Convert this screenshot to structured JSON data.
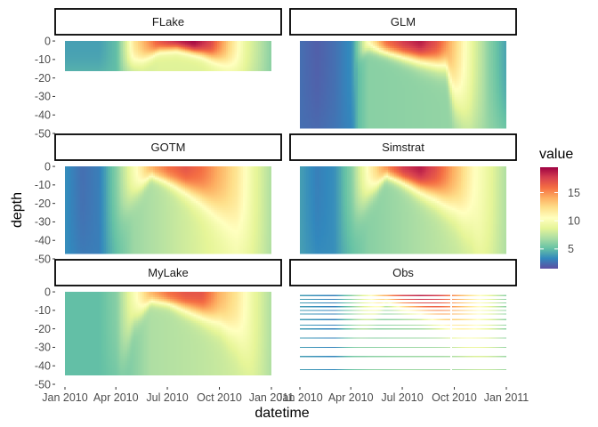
{
  "chart_data": {
    "type": "heatmap",
    "title": "",
    "xlabel": "datetime",
    "ylabel": "depth",
    "x_ticks": [
      "Jan 2010",
      "Apr 2010",
      "Jul 2010",
      "Oct 2010",
      "Jan 2011"
    ],
    "x_tick_dates": [
      "2010-01-01",
      "2010-04-01",
      "2010-07-01",
      "2010-10-01",
      "2011-01-01"
    ],
    "y_ticks": [
      0,
      -10,
      -20,
      -30,
      -40,
      -50
    ],
    "ylim": [
      -50,
      1
    ],
    "facet_layout": "3 rows x 2 columns",
    "legend": {
      "title": "value",
      "ticks": [
        5,
        10,
        15
      ],
      "range": [
        1.5,
        19.5
      ],
      "palette": "Spectral (reversed)",
      "colors": [
        "#5e4fa2",
        "#3288bd",
        "#66c2a5",
        "#abdda4",
        "#e6f598",
        "#ffffbf",
        "#fee08b",
        "#fdae61",
        "#f46d43",
        "#d53e4f",
        "#9e0142"
      ]
    },
    "facets": [
      {
        "name": "FLake",
        "max_depth": -16,
        "end_date": "2010-12-31",
        "style": "heatmap",
        "thermocline": [
          [
            0,
            15
          ],
          [
            3,
            15
          ],
          [
            4.5,
            10
          ],
          [
            5.5,
            5
          ],
          [
            6.5,
            4
          ],
          [
            8,
            7
          ],
          [
            9.5,
            12
          ],
          [
            10.5,
            16
          ],
          [
            11.5,
            16
          ]
        ],
        "surface_temp": [
          [
            0,
            4
          ],
          [
            2,
            4
          ],
          [
            3,
            5
          ],
          [
            3.5,
            8
          ],
          [
            4,
            12
          ],
          [
            5.5,
            17
          ],
          [
            6.5,
            19
          ],
          [
            7.5,
            19.5
          ],
          [
            8.5,
            17.5
          ],
          [
            9.5,
            13
          ],
          [
            10.5,
            9
          ],
          [
            12,
            6
          ]
        ],
        "deep_temp": [
          [
            0,
            5
          ],
          [
            3,
            5
          ],
          [
            3.5,
            6.5
          ],
          [
            4.5,
            8
          ],
          [
            5.5,
            8.5
          ],
          [
            8,
            8.5
          ],
          [
            9.5,
            9
          ],
          [
            10.5,
            8
          ],
          [
            12,
            6
          ]
        ]
      },
      {
        "name": "GLM",
        "max_depth": -47,
        "end_date": "2010-12-31",
        "style": "heatmap",
        "thermocline": [
          [
            0,
            47
          ],
          [
            1,
            47
          ],
          [
            2,
            47
          ],
          [
            3,
            47
          ],
          [
            3.3,
            10
          ],
          [
            4,
            4
          ],
          [
            5,
            6
          ],
          [
            6,
            8
          ],
          [
            7,
            10
          ],
          [
            8,
            12
          ],
          [
            8.5,
            13
          ],
          [
            9,
            30
          ],
          [
            10,
            47
          ],
          [
            12,
            47
          ]
        ],
        "surface_temp": [
          [
            0,
            2.5
          ],
          [
            1,
            2
          ],
          [
            2,
            2.5
          ],
          [
            3,
            3.5
          ],
          [
            3.4,
            6
          ],
          [
            4,
            11
          ],
          [
            5,
            16
          ],
          [
            6,
            18
          ],
          [
            7,
            19
          ],
          [
            8,
            17
          ],
          [
            9,
            13
          ],
          [
            10,
            9
          ],
          [
            11,
            6
          ],
          [
            12,
            4
          ]
        ],
        "deep_temp": [
          [
            0,
            2.5
          ],
          [
            3,
            3
          ],
          [
            3.4,
            5
          ],
          [
            4,
            6
          ],
          [
            12,
            6.5
          ]
        ]
      },
      {
        "name": "GOTM",
        "max_depth": -47,
        "end_date": "2010-12-31",
        "style": "heatmap",
        "thermocline": [
          [
            0,
            47
          ],
          [
            2,
            47
          ],
          [
            3,
            30
          ],
          [
            4,
            15
          ],
          [
            5,
            5
          ],
          [
            6,
            8
          ],
          [
            7,
            12
          ],
          [
            8,
            17
          ],
          [
            9,
            24
          ],
          [
            10,
            32
          ],
          [
            11,
            42
          ],
          [
            11.5,
            47
          ],
          [
            12,
            47
          ]
        ],
        "surface_temp": [
          [
            0,
            3.5
          ],
          [
            1,
            2.5
          ],
          [
            2,
            3
          ],
          [
            3,
            6
          ],
          [
            4,
            10
          ],
          [
            5,
            14
          ],
          [
            6,
            16
          ],
          [
            7,
            17
          ],
          [
            8,
            16
          ],
          [
            9,
            14
          ],
          [
            10,
            12
          ],
          [
            11,
            9
          ],
          [
            12,
            7
          ]
        ],
        "deep_temp": [
          [
            0,
            3.5
          ],
          [
            2,
            3
          ],
          [
            3,
            5
          ],
          [
            4,
            6.5
          ],
          [
            6,
            7.5
          ],
          [
            8,
            8.5
          ],
          [
            10,
            9.5
          ],
          [
            12,
            7
          ]
        ]
      },
      {
        "name": "Simstrat",
        "max_depth": -47,
        "end_date": "2010-12-31",
        "style": "heatmap",
        "thermocline": [
          [
            0,
            47
          ],
          [
            2,
            47
          ],
          [
            3,
            30
          ],
          [
            4,
            15
          ],
          [
            5,
            5
          ],
          [
            6,
            8
          ],
          [
            7,
            12
          ],
          [
            8,
            16
          ],
          [
            9,
            22
          ],
          [
            10,
            32
          ],
          [
            10.5,
            45
          ],
          [
            11,
            47
          ],
          [
            12,
            47
          ]
        ],
        "surface_temp": [
          [
            0,
            4
          ],
          [
            1,
            3
          ],
          [
            2,
            3.5
          ],
          [
            3,
            6
          ],
          [
            4,
            11
          ],
          [
            5,
            15
          ],
          [
            6,
            18
          ],
          [
            7,
            19
          ],
          [
            8,
            17
          ],
          [
            9,
            14
          ],
          [
            10,
            11
          ],
          [
            11,
            9
          ],
          [
            12,
            7
          ]
        ],
        "deep_temp": [
          [
            0,
            4
          ],
          [
            2,
            3.5
          ],
          [
            3,
            5
          ],
          [
            4,
            6
          ],
          [
            7,
            7
          ],
          [
            10,
            8
          ],
          [
            11,
            8
          ],
          [
            12,
            7
          ]
        ]
      },
      {
        "name": "MyLake",
        "max_depth": -45,
        "end_date": "2010-12-31",
        "style": "heatmap",
        "thermocline": [
          [
            0,
            45
          ],
          [
            3,
            45
          ],
          [
            4,
            15
          ],
          [
            5,
            5
          ],
          [
            6,
            6
          ],
          [
            7,
            9
          ],
          [
            8,
            12
          ],
          [
            9,
            16
          ],
          [
            10,
            24
          ],
          [
            11,
            40
          ],
          [
            11.5,
            45
          ],
          [
            12,
            45
          ]
        ],
        "surface_temp": [
          [
            0,
            5
          ],
          [
            1,
            5
          ],
          [
            2,
            5
          ],
          [
            3,
            6
          ],
          [
            4,
            10
          ],
          [
            5,
            14
          ],
          [
            6,
            16
          ],
          [
            7,
            17
          ],
          [
            8,
            17
          ],
          [
            9,
            14
          ],
          [
            10,
            12
          ],
          [
            11,
            9
          ],
          [
            12,
            7
          ]
        ],
        "deep_temp": [
          [
            0,
            5
          ],
          [
            3,
            5
          ],
          [
            4,
            6
          ],
          [
            5,
            7
          ],
          [
            8,
            7.5
          ],
          [
            10,
            8
          ],
          [
            11,
            8
          ],
          [
            12,
            7
          ]
        ]
      },
      {
        "name": "Obs",
        "max_depth": -42,
        "end_date": "2010-12-31",
        "style": "lines",
        "gap_month": 8.75,
        "obs_depths": [
          -2,
          -4,
          -6,
          -8,
          -10,
          -12,
          -15,
          -18,
          -20,
          -25,
          -30,
          -35,
          -42
        ],
        "thermocline": [
          [
            0,
            40
          ],
          [
            2,
            40
          ],
          [
            3,
            30
          ],
          [
            4,
            15
          ],
          [
            5,
            5
          ],
          [
            6,
            8
          ],
          [
            7,
            10
          ],
          [
            8,
            14
          ],
          [
            9,
            20
          ],
          [
            10,
            28
          ],
          [
            11,
            36
          ],
          [
            12,
            40
          ]
        ],
        "surface_temp": [
          [
            0,
            4
          ],
          [
            2,
            3
          ],
          [
            3,
            6
          ],
          [
            4,
            10
          ],
          [
            5,
            15
          ],
          [
            6,
            18
          ],
          [
            7,
            19
          ],
          [
            8,
            18
          ],
          [
            9,
            15
          ],
          [
            10,
            12
          ],
          [
            11,
            9
          ],
          [
            12,
            6
          ]
        ],
        "deep_temp": [
          [
            0,
            4
          ],
          [
            2,
            3.5
          ],
          [
            3,
            5
          ],
          [
            4,
            6
          ],
          [
            6,
            6.5
          ],
          [
            12,
            7
          ]
        ]
      }
    ]
  }
}
